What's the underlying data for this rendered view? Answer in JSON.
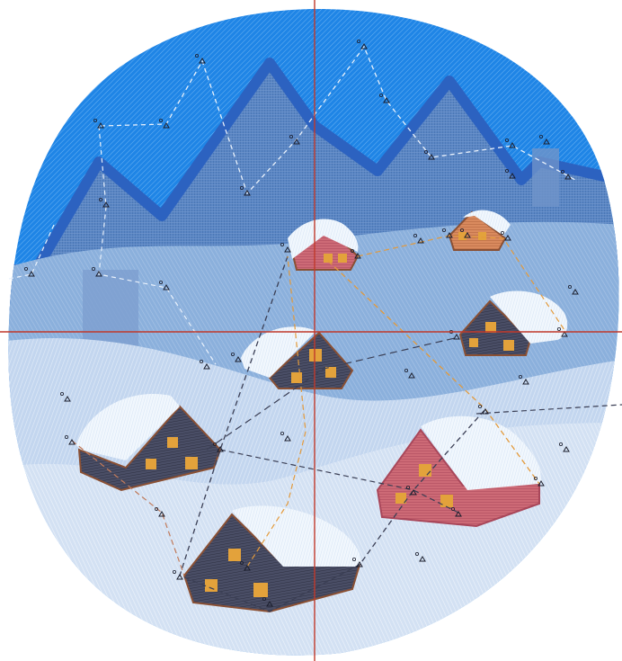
{
  "view": {
    "title": "",
    "crosshair_color": "#c0392b"
  },
  "palette": {
    "sky": "#1a7fe0",
    "sky_light": "#5aa8ee",
    "mountain": "#4f7fbf",
    "mountain_edge": "#2f62b8",
    "mid_field": "#7fa9d8",
    "snow": "#c7d9f0",
    "snow_light": "#dde8f6",
    "roof_snow": "#eef5fc",
    "house_dark": "#4a4e66",
    "house_red": "#c8626f",
    "house_orange": "#d9845a",
    "window": "#e3a23b",
    "roof_edge": "#8a5034",
    "travel_gray": "#3b3f55",
    "travel_orange": "#e39a3b"
  },
  "houses": [
    {
      "name": "house-top-center",
      "color": "red"
    },
    {
      "name": "house-top-right",
      "color": "orange"
    },
    {
      "name": "house-mid-right",
      "color": "dark"
    },
    {
      "name": "house-mid-center",
      "color": "dark"
    },
    {
      "name": "house-left",
      "color": "dark"
    },
    {
      "name": "house-right-large",
      "color": "red"
    },
    {
      "name": "house-bottom",
      "color": "dark"
    }
  ],
  "icons": [
    "tie-in-icon",
    "tie-off-icon",
    "stitch-start-marker",
    "stitch-end-marker"
  ]
}
